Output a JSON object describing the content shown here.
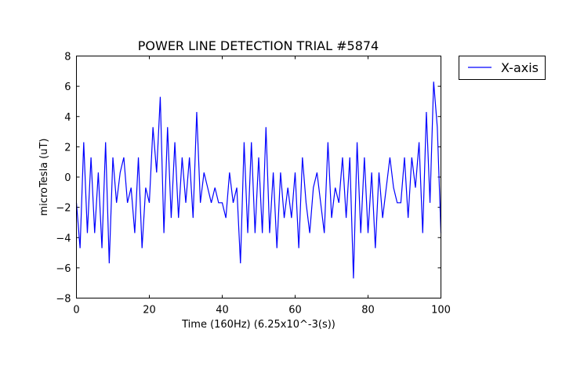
{
  "chart_data": {
    "type": "line",
    "title": "POWER LINE DETECTION TRIAL #5874",
    "xlabel": "Time (160Hz) (6.25x10^-3(s))",
    "ylabel": "microTesla (uT)",
    "xlim": [
      0,
      100
    ],
    "ylim": [
      -8,
      8
    ],
    "xticks": [
      0,
      20,
      40,
      60,
      80,
      100
    ],
    "yticks": [
      -8,
      -6,
      -4,
      -2,
      0,
      2,
      4,
      6,
      8
    ],
    "grid": false,
    "legend_position": "outside-top-right",
    "series": [
      {
        "name": "X-axis",
        "color": "#0000ff",
        "x": [
          0,
          1,
          2,
          3,
          4,
          5,
          6,
          7,
          8,
          9,
          10,
          11,
          12,
          13,
          14,
          15,
          16,
          17,
          18,
          19,
          20,
          21,
          22,
          23,
          24,
          25,
          26,
          27,
          28,
          29,
          30,
          31,
          32,
          33,
          34,
          35,
          36,
          37,
          38,
          39,
          40,
          41,
          42,
          43,
          44,
          45,
          46,
          47,
          48,
          49,
          50,
          51,
          52,
          53,
          54,
          55,
          56,
          57,
          58,
          59,
          60,
          61,
          62,
          63,
          64,
          65,
          66,
          67,
          68,
          69,
          70,
          71,
          72,
          73,
          74,
          75,
          76,
          77,
          78,
          79,
          80,
          81,
          82,
          83,
          84,
          85,
          86,
          87,
          88,
          89,
          90,
          91,
          92,
          93,
          94,
          95,
          96,
          97,
          98,
          99,
          100
        ],
        "y": [
          -1.7,
          -4.7,
          2.3,
          -3.7,
          1.3,
          -3.7,
          0.3,
          -4.7,
          2.3,
          -5.7,
          1.3,
          -1.7,
          0.3,
          1.3,
          -1.7,
          -0.7,
          -3.7,
          1.3,
          -4.7,
          -0.7,
          -1.7,
          3.3,
          0.3,
          5.3,
          -3.7,
          3.3,
          -2.7,
          2.3,
          -2.7,
          1.3,
          -1.7,
          1.3,
          -2.7,
          4.3,
          -1.7,
          0.3,
          -0.7,
          -1.7,
          -0.7,
          -1.7,
          -1.7,
          -2.7,
          0.3,
          -1.7,
          -0.7,
          -5.7,
          2.3,
          -3.7,
          2.3,
          -3.7,
          1.3,
          -3.7,
          3.3,
          -3.7,
          0.3,
          -4.7,
          0.3,
          -2.7,
          -0.7,
          -2.7,
          0.3,
          -4.7,
          1.3,
          -1.7,
          -3.7,
          -0.7,
          0.3,
          -1.7,
          -3.7,
          2.3,
          -2.7,
          -0.7,
          -1.7,
          1.3,
          -2.7,
          1.3,
          -6.7,
          2.3,
          -3.7,
          1.3,
          -3.7,
          0.3,
          -4.7,
          0.3,
          -2.7,
          -0.7,
          1.3,
          -0.7,
          -1.7,
          -1.7,
          1.3,
          -2.7,
          1.3,
          -0.7,
          2.3,
          -3.7,
          4.3,
          -1.7,
          6.3,
          3.3,
          -3.7
        ]
      }
    ]
  }
}
